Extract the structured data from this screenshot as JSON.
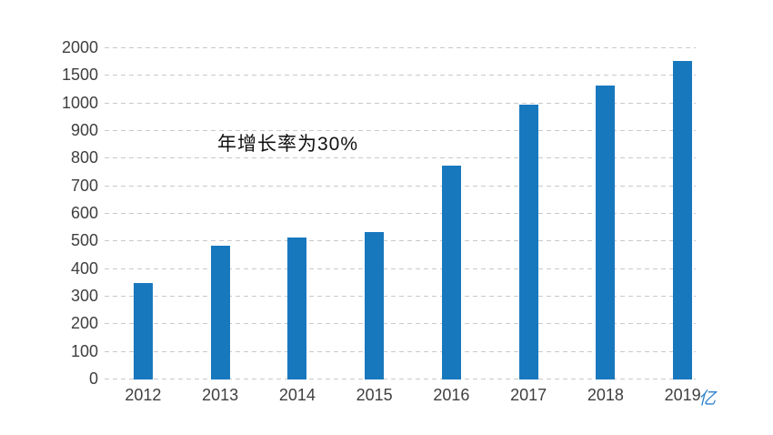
{
  "chart_data": {
    "type": "bar",
    "title": "",
    "xlabel": "",
    "ylabel": "",
    "categories": [
      "2012",
      "2013",
      "2014",
      "2015",
      "2016",
      "2017",
      "2018",
      "2019"
    ],
    "values": [
      350,
      485,
      515,
      535,
      775,
      995,
      1330,
      1775
    ],
    "y_ticks": [
      0,
      100,
      200,
      300,
      400,
      500,
      600,
      700,
      800,
      900,
      1000,
      1500,
      2000
    ],
    "y_scale_note": "equal spacing per tick; 0-1000 step 100, then 1500 and 2000",
    "annotation": "年增长率为30%",
    "unit_label": "亿",
    "legend": "none",
    "grid": "horizontal dashed",
    "bar_color": "#1878be",
    "unit_label_color": "#2e82d0",
    "axis_label_color": "#3f3f3f",
    "gridline_color": "#c9c9c9",
    "background_color": "#ffffff"
  }
}
